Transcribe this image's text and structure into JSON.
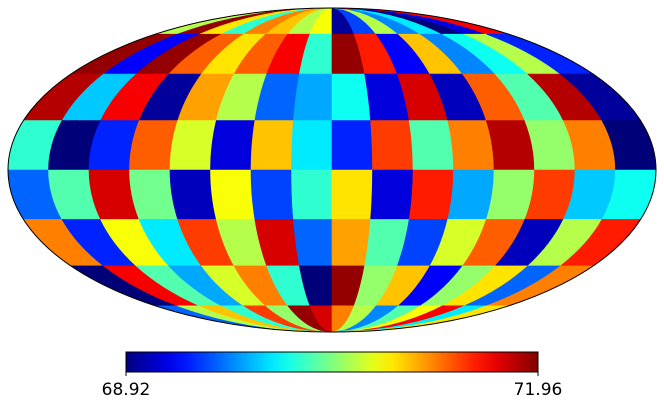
{
  "chart_data": {
    "type": "mollweide-map",
    "colormap": "jet",
    "clim": [
      68.92,
      71.96
    ],
    "cticks": [
      68.92,
      71.96
    ],
    "values": [
      [
        70.6,
        71.9,
        70.9,
        70.2,
        71.2,
        71.0,
        70.6,
        70.8,
        69.0,
        69.5,
        70.6,
        69.7,
        70.0,
        68.9,
        69.2,
        71.6
      ],
      [
        71.9,
        69.3,
        71.9,
        71.3,
        70.9,
        71.3,
        71.6,
        70.2,
        71.9,
        71.5,
        69.3,
        71.0,
        69.7,
        70.1,
        70.6,
        69.4
      ],
      [
        71.8,
        69.9,
        71.6,
        69.0,
        71.1,
        70.6,
        69.6,
        69.8,
        70.1,
        69.2,
        71.7,
        69.1,
        71.3,
        70.3,
        71.8,
        69.0
      ],
      [
        70.2,
        68.9,
        69.4,
        71.3,
        70.7,
        69.2,
        71.0,
        70.0,
        69.4,
        71.4,
        70.3,
        71.2,
        71.8,
        70.5,
        71.2,
        68.9
      ],
      [
        69.6,
        70.3,
        71.7,
        70.4,
        69.1,
        70.8,
        69.5,
        70.2,
        70.9,
        69.2,
        71.5,
        69.8,
        70.5,
        71.4,
        69.9,
        70.1
      ],
      [
        71.2,
        69.4,
        70.8,
        70.0,
        71.4,
        70.6,
        71.7,
        69.6,
        71.1,
        70.3,
        69.5,
        70.7,
        71.3,
        69.1,
        70.6,
        71.5
      ],
      [
        68.9,
        71.6,
        70.3,
        69.8,
        70.7,
        71.2,
        70.2,
        68.9,
        71.9,
        70.5,
        71.0,
        69.3,
        70.5,
        70.9,
        69.6,
        71.2
      ],
      [
        69.6,
        70.6,
        71.0,
        70.2,
        71.4,
        70.5,
        71.9,
        71.7,
        71.2,
        70.6,
        69.7,
        70.3,
        70.8,
        71.6,
        70.0,
        70.9
      ]
    ]
  }
}
